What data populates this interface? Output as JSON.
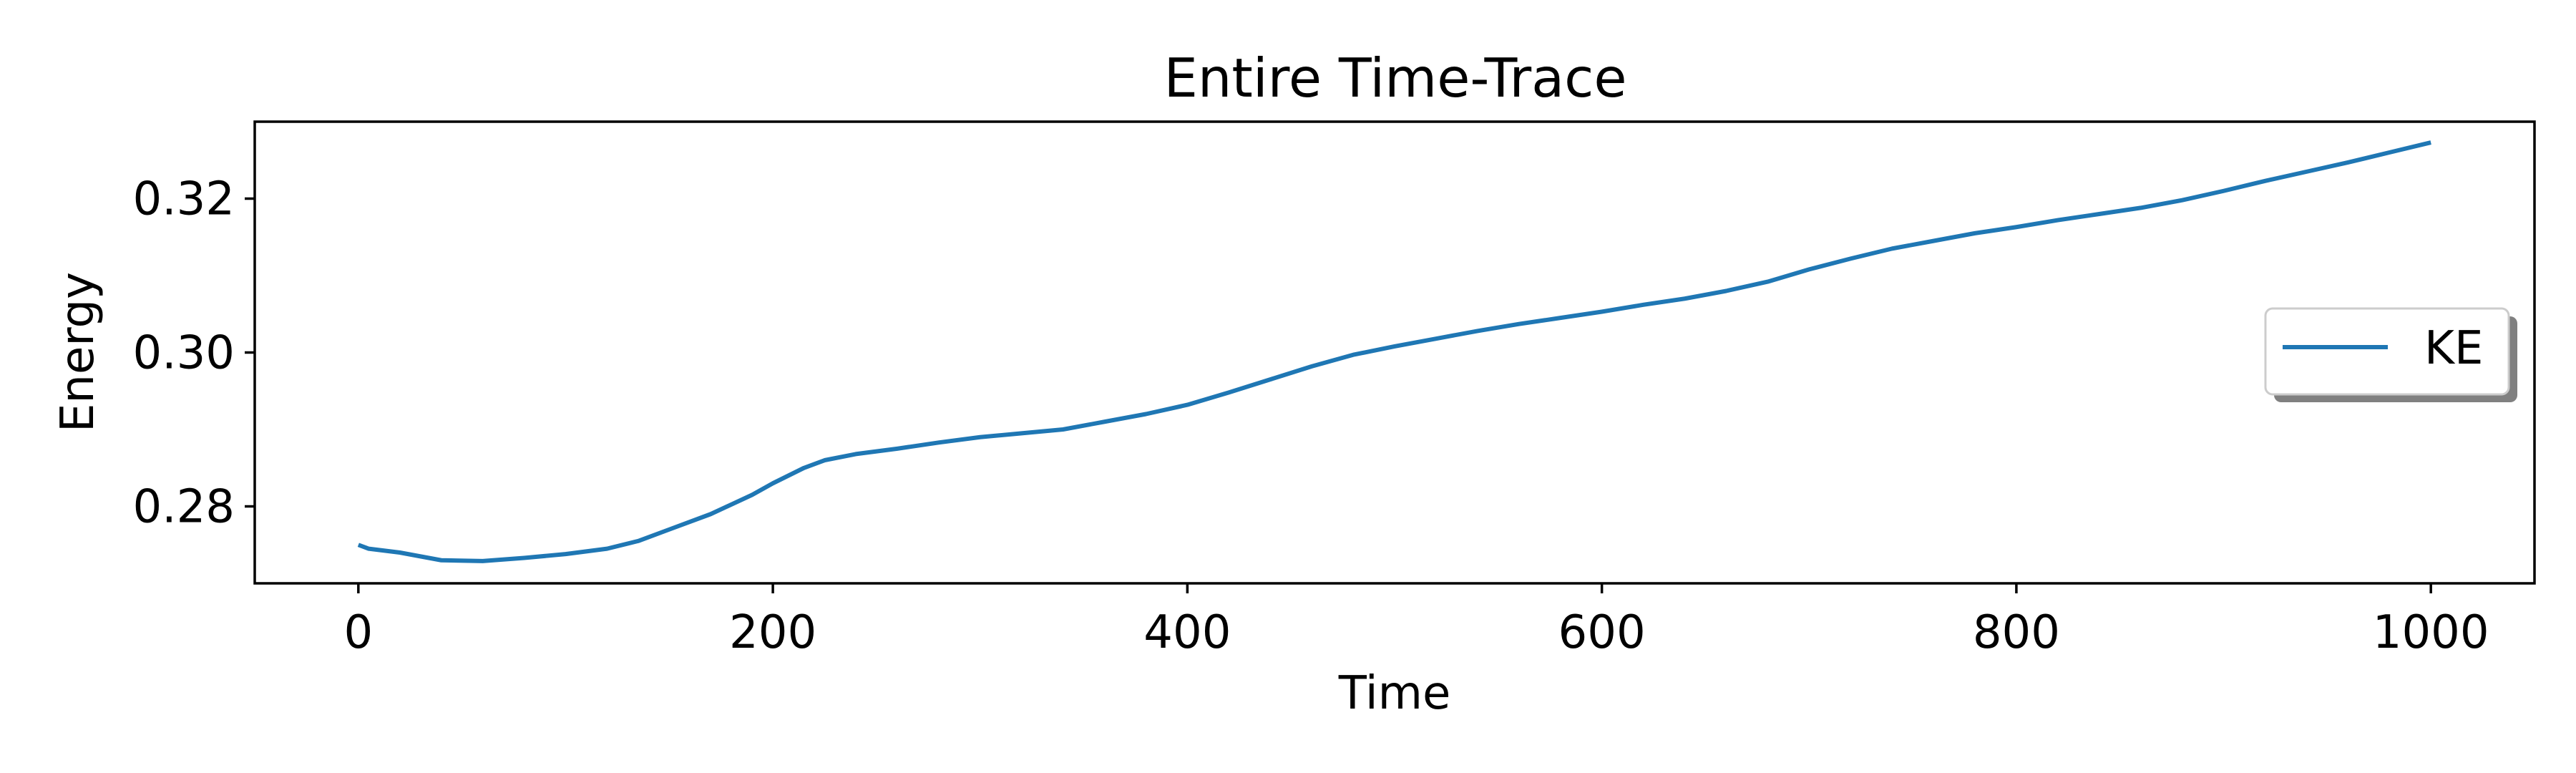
{
  "chart_data": {
    "type": "line",
    "title": "Entire Time-Trace",
    "xlabel": "Time",
    "ylabel": "Energy",
    "xlim": [
      -50,
      1050
    ],
    "ylim": [
      0.27,
      0.33
    ],
    "x_ticks": [
      0,
      200,
      400,
      600,
      800,
      1000
    ],
    "x_tick_labels": [
      "0",
      "200",
      "400",
      "600",
      "800",
      "1000"
    ],
    "y_ticks": [
      0.28,
      0.3,
      0.32
    ],
    "y_tick_labels": [
      "0.28",
      "0.30",
      "0.32"
    ],
    "grid": false,
    "legend_position": "center-right",
    "series": [
      {
        "name": "KE",
        "color": "#1f77b4",
        "x": [
          0,
          5,
          20,
          40,
          60,
          80,
          100,
          120,
          135,
          150,
          170,
          190,
          200,
          215,
          225,
          240,
          260,
          280,
          300,
          320,
          340,
          360,
          380,
          400,
          420,
          440,
          460,
          480,
          500,
          520,
          540,
          560,
          580,
          600,
          620,
          640,
          660,
          680,
          700,
          720,
          740,
          760,
          780,
          800,
          820,
          840,
          860,
          880,
          900,
          920,
          940,
          960,
          980,
          1000
        ],
        "values": [
          0.275,
          0.2745,
          0.274,
          0.273,
          0.2729,
          0.2733,
          0.2738,
          0.2745,
          0.2755,
          0.277,
          0.279,
          0.2815,
          0.283,
          0.285,
          0.286,
          0.2868,
          0.2875,
          0.2883,
          0.289,
          0.2895,
          0.29,
          0.291,
          0.292,
          0.2932,
          0.2948,
          0.2965,
          0.2982,
          0.2997,
          0.3008,
          0.3018,
          0.3028,
          0.3037,
          0.3045,
          0.3053,
          0.3062,
          0.307,
          0.308,
          0.3092,
          0.3108,
          0.3122,
          0.3135,
          0.3145,
          0.3155,
          0.3163,
          0.3172,
          0.318,
          0.3188,
          0.3198,
          0.321,
          0.3223,
          0.3235,
          0.3247,
          0.326,
          0.3273
        ]
      }
    ]
  }
}
